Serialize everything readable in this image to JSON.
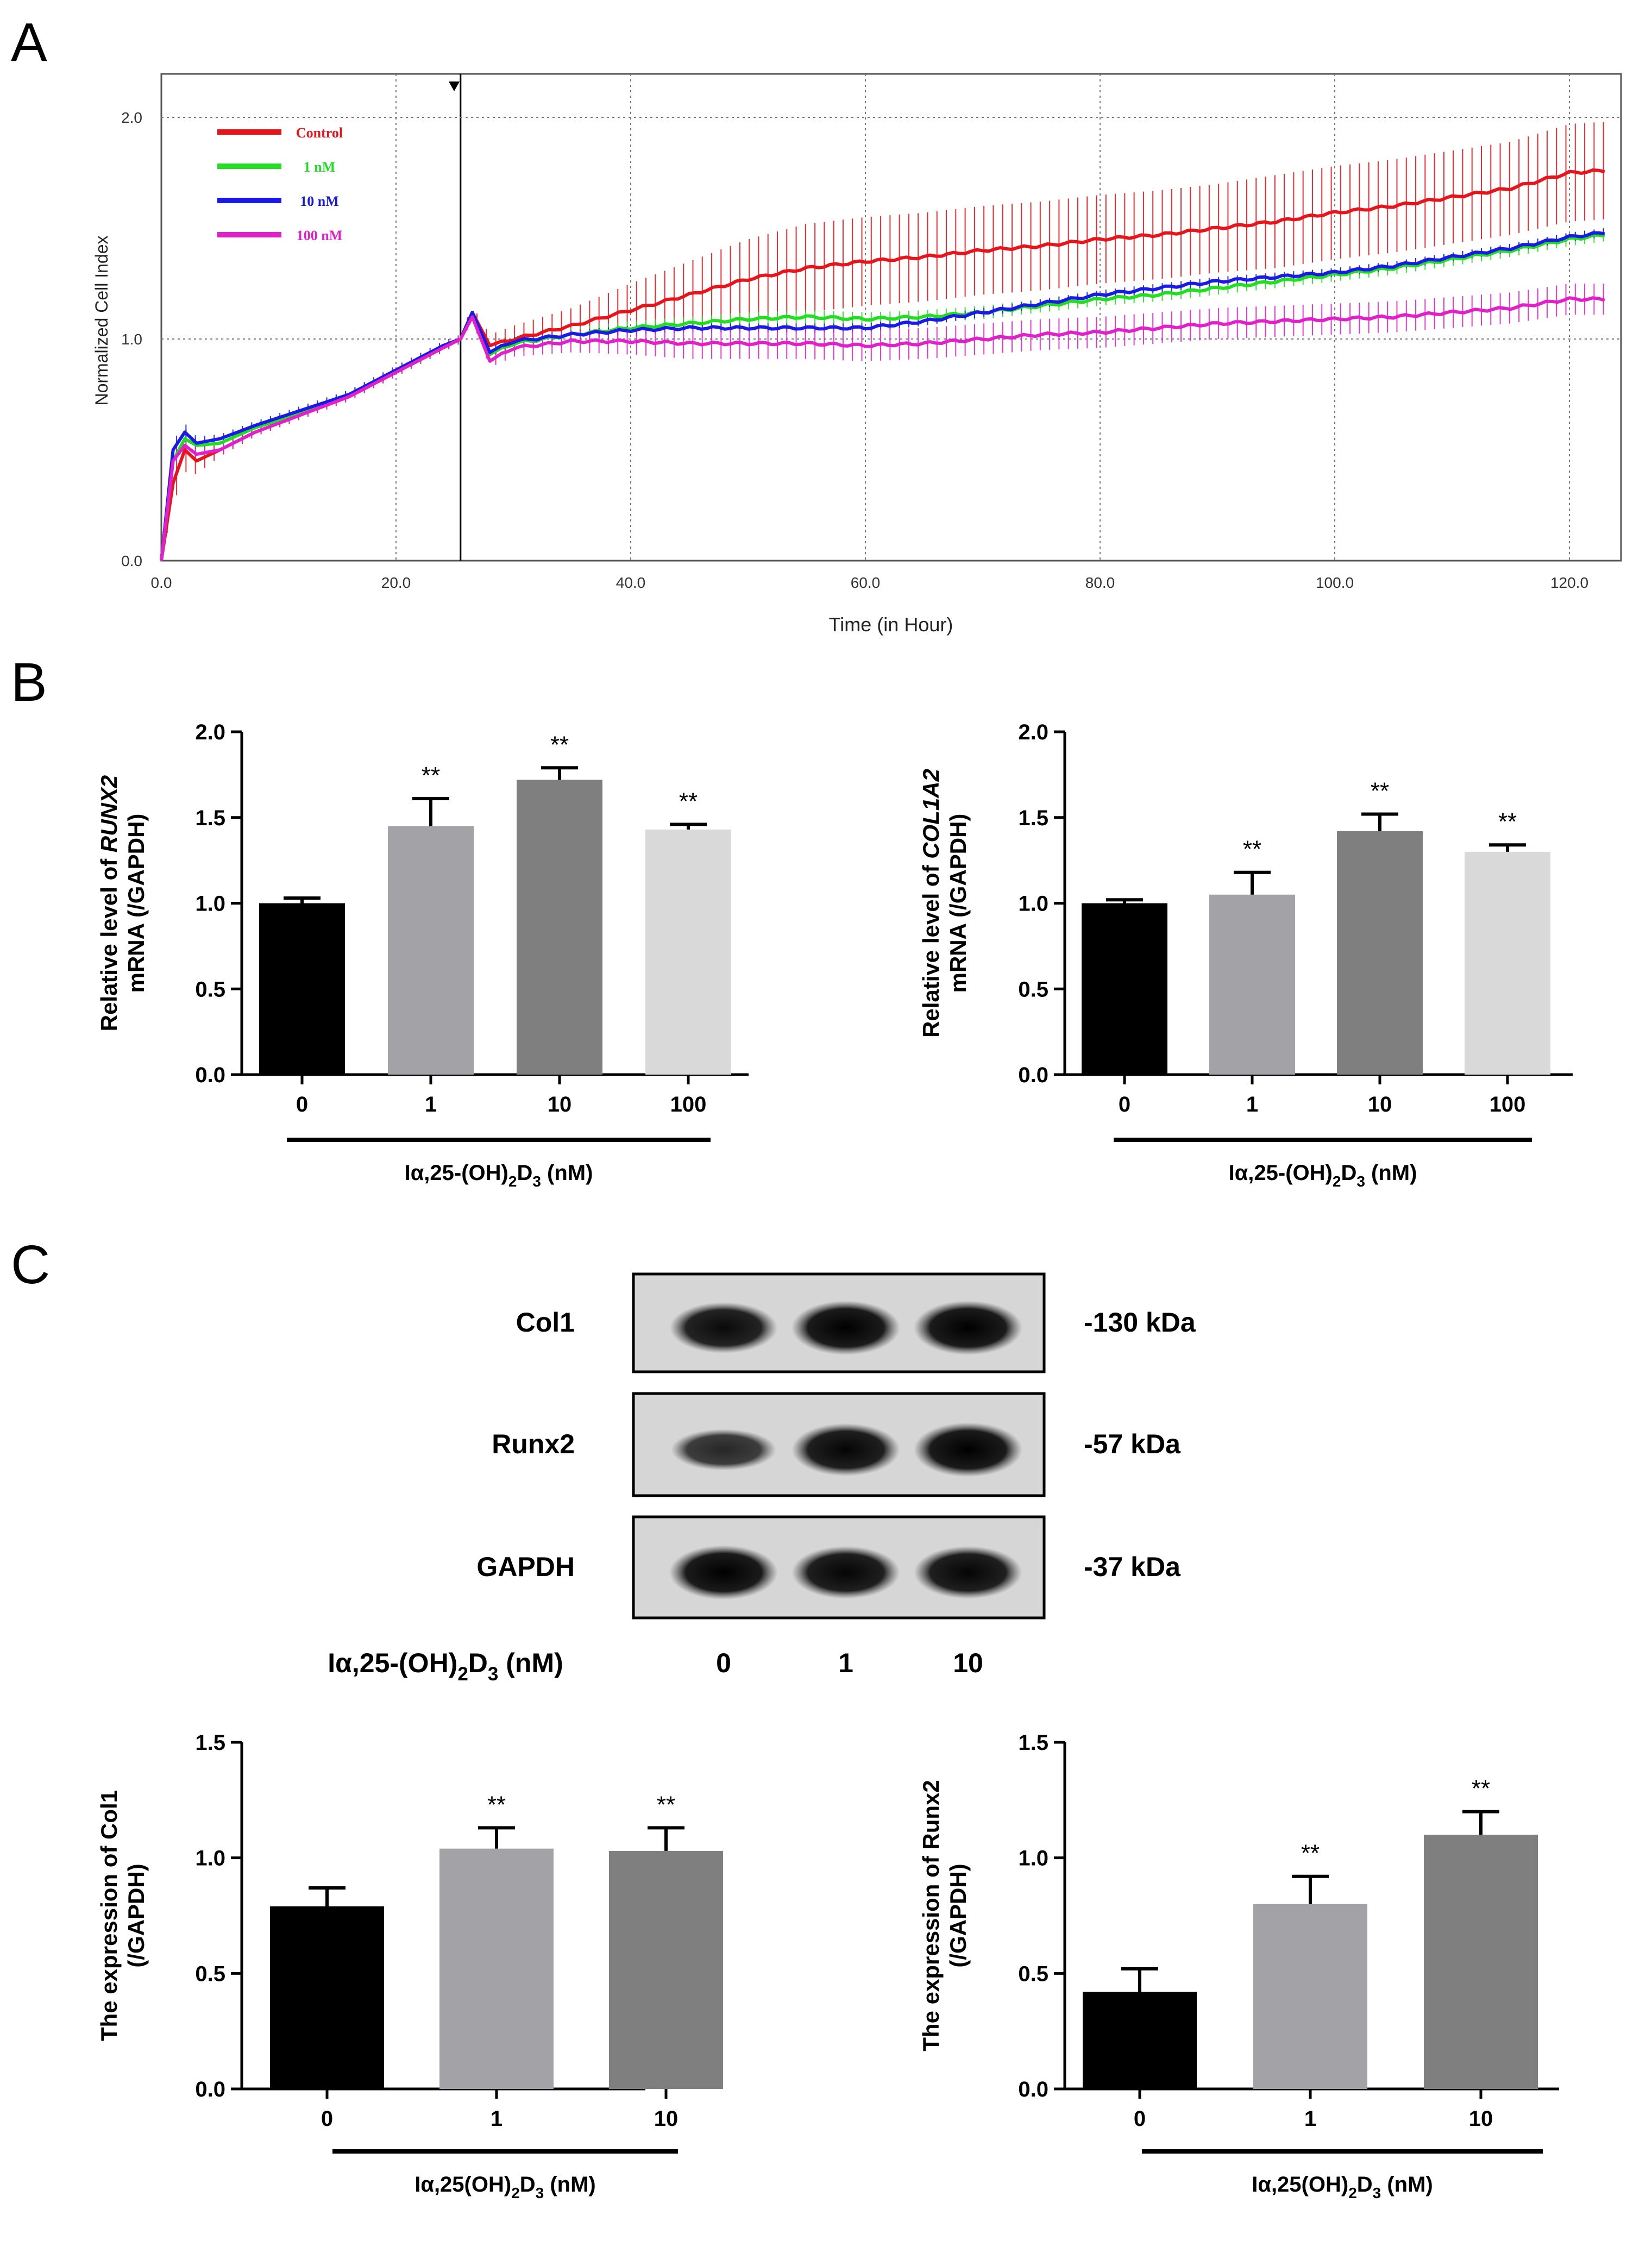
{
  "panels": {
    "a": "A",
    "b": "B",
    "c": "C"
  },
  "chart_data": [
    {
      "id": "panel-a",
      "type": "line",
      "title": "",
      "xlabel": "Time (in Hour)",
      "ylabel": "Normalized Cell Index",
      "xlim": [
        0,
        124
      ],
      "ylim": [
        0,
        2.1
      ],
      "xticks": [
        0,
        20,
        40,
        60,
        80,
        100,
        120
      ],
      "xtick_labels": [
        "0.0",
        "20.0",
        "40.0",
        "60.0",
        "80.0",
        "100.0",
        "120.0"
      ],
      "yticks": [
        0,
        1,
        2
      ],
      "ytick_labels": [
        "0.0",
        "1.0",
        "2.0"
      ],
      "vlines": [
        20,
        25.5,
        40,
        60,
        80,
        100,
        120
      ],
      "treatment_marker_x": 25.5,
      "series": [
        {
          "name": "Control",
          "color": "#e8141c",
          "x": [
            0,
            1,
            2,
            3,
            5,
            8,
            12,
            16,
            20,
            24,
            25.5,
            26.5,
            28,
            30,
            35,
            40,
            45,
            50,
            55,
            60,
            65,
            70,
            75,
            80,
            85,
            90,
            95,
            100,
            105,
            110,
            115,
            120,
            123
          ],
          "values": [
            0,
            0.35,
            0.5,
            0.45,
            0.5,
            0.58,
            0.66,
            0.74,
            0.85,
            0.96,
            1.0,
            1.12,
            0.97,
            1.0,
            1.06,
            1.13,
            1.2,
            1.27,
            1.32,
            1.35,
            1.37,
            1.4,
            1.42,
            1.45,
            1.47,
            1.5,
            1.53,
            1.57,
            1.6,
            1.64,
            1.68,
            1.75,
            1.76
          ],
          "err": [
            0,
            0.1,
            0.1,
            0.06,
            0.03,
            0.02,
            0.02,
            0.02,
            0.02,
            0.02,
            0.02,
            0.03,
            0.05,
            0.06,
            0.08,
            0.12,
            0.15,
            0.18,
            0.2,
            0.2,
            0.2,
            0.2,
            0.2,
            0.2,
            0.2,
            0.2,
            0.21,
            0.21,
            0.21,
            0.21,
            0.21,
            0.22,
            0.22
          ]
        },
        {
          "name": "1 nM",
          "color": "#22dd22",
          "x": [
            0,
            1,
            2,
            3,
            5,
            8,
            12,
            16,
            20,
            24,
            25.5,
            26.5,
            28,
            30,
            35,
            40,
            45,
            50,
            55,
            60,
            65,
            70,
            75,
            80,
            85,
            90,
            95,
            100,
            105,
            110,
            115,
            120,
            123
          ],
          "values": [
            0,
            0.45,
            0.55,
            0.52,
            0.53,
            0.6,
            0.67,
            0.75,
            0.85,
            0.96,
            1.0,
            1.12,
            0.93,
            0.98,
            1.02,
            1.05,
            1.07,
            1.09,
            1.1,
            1.09,
            1.1,
            1.12,
            1.15,
            1.18,
            1.2,
            1.23,
            1.26,
            1.29,
            1.32,
            1.36,
            1.4,
            1.45,
            1.47
          ],
          "err": [
            0,
            0.05,
            0.05,
            0.03,
            0.02,
            0.02,
            0.02,
            0.02,
            0.02,
            0.02,
            0.02,
            0.02,
            0.03,
            0.03,
            0.03,
            0.03,
            0.03,
            0.03,
            0.03,
            0.03,
            0.03,
            0.03,
            0.03,
            0.03,
            0.03,
            0.03,
            0.03,
            0.03,
            0.03,
            0.03,
            0.03,
            0.03,
            0.03
          ]
        },
        {
          "name": "10 nM",
          "color": "#1a1ae6",
          "x": [
            0,
            1,
            2,
            3,
            5,
            8,
            12,
            16,
            20,
            24,
            25.5,
            26.5,
            28,
            30,
            35,
            40,
            45,
            50,
            55,
            60,
            65,
            70,
            75,
            80,
            85,
            90,
            95,
            100,
            105,
            110,
            115,
            120,
            123
          ],
          "values": [
            0,
            0.5,
            0.58,
            0.53,
            0.55,
            0.61,
            0.68,
            0.75,
            0.86,
            0.97,
            1.0,
            1.12,
            0.94,
            0.99,
            1.02,
            1.04,
            1.05,
            1.05,
            1.05,
            1.05,
            1.08,
            1.12,
            1.16,
            1.2,
            1.23,
            1.26,
            1.28,
            1.3,
            1.33,
            1.37,
            1.41,
            1.46,
            1.48
          ],
          "err": [
            0,
            0.04,
            0.04,
            0.03,
            0.02,
            0.02,
            0.02,
            0.02,
            0.02,
            0.02,
            0.02,
            0.02,
            0.02,
            0.02,
            0.02,
            0.02,
            0.02,
            0.02,
            0.02,
            0.02,
            0.02,
            0.02,
            0.02,
            0.02,
            0.02,
            0.02,
            0.02,
            0.02,
            0.02,
            0.02,
            0.02,
            0.02,
            0.02
          ]
        },
        {
          "name": "100 nM",
          "color": "#e020c8",
          "x": [
            0,
            1,
            2,
            3,
            5,
            8,
            12,
            16,
            20,
            24,
            25.5,
            26.5,
            28,
            30,
            35,
            40,
            45,
            50,
            55,
            60,
            65,
            70,
            75,
            80,
            85,
            90,
            95,
            100,
            105,
            110,
            115,
            120,
            123
          ],
          "values": [
            0,
            0.45,
            0.52,
            0.48,
            0.5,
            0.58,
            0.66,
            0.74,
            0.85,
            0.96,
            1.0,
            1.1,
            0.9,
            0.96,
            0.99,
            0.99,
            0.98,
            0.98,
            0.98,
            0.97,
            0.98,
            1.0,
            1.02,
            1.03,
            1.05,
            1.07,
            1.08,
            1.09,
            1.1,
            1.12,
            1.14,
            1.18,
            1.18
          ],
          "err": [
            0,
            0.04,
            0.04,
            0.03,
            0.02,
            0.02,
            0.02,
            0.02,
            0.02,
            0.02,
            0.02,
            0.02,
            0.03,
            0.04,
            0.05,
            0.06,
            0.07,
            0.07,
            0.07,
            0.07,
            0.07,
            0.07,
            0.07,
            0.07,
            0.07,
            0.07,
            0.07,
            0.07,
            0.07,
            0.07,
            0.07,
            0.07,
            0.07
          ]
        }
      ]
    },
    {
      "id": "runx2-mrna",
      "type": "bar",
      "categories": [
        "0",
        "1",
        "10",
        "100"
      ],
      "values": [
        1.0,
        1.45,
        1.72,
        1.43
      ],
      "errors": [
        0.03,
        0.16,
        0.07,
        0.03
      ],
      "significance": [
        "",
        "**",
        "**",
        "**"
      ],
      "colors": [
        "#000000",
        "#a3a3a7",
        "#7f7f7f",
        "#d9d9d9"
      ],
      "ylabel_line1_pre": "Relative level of ",
      "ylabel_line1_gene": "RUNX2",
      "ylabel_line2": "mRNA (/GAPDH)",
      "xlabel": {
        "base": "Iα,25-(OH)",
        "sub1": "2",
        "mid": "D",
        "sub2": "3",
        "unit": " (nM)"
      },
      "ylim": [
        0,
        2.0
      ],
      "yticks": [
        "0.0",
        "0.5",
        "1.0",
        "1.5",
        "2.0"
      ]
    },
    {
      "id": "col1a2-mrna",
      "type": "bar",
      "categories": [
        "0",
        "1",
        "10",
        "100"
      ],
      "values": [
        1.0,
        1.05,
        1.42,
        1.3
      ],
      "errors": [
        0.02,
        0.13,
        0.1,
        0.04
      ],
      "significance": [
        "",
        "**",
        "**",
        "**"
      ],
      "colors": [
        "#000000",
        "#a3a3a7",
        "#7f7f7f",
        "#d9d9d9"
      ],
      "ylabel_line1_pre": "Relative level of ",
      "ylabel_line1_gene": "COL1A2",
      "ylabel_line2": "mRNA (/GAPDH)",
      "xlabel": {
        "base": "Iα,25-(OH)",
        "sub1": "2",
        "mid": "D",
        "sub2": "3",
        "unit": " (nM)"
      },
      "ylim": [
        0,
        2.0
      ],
      "yticks": [
        "0.0",
        "0.5",
        "1.0",
        "1.5",
        "2.0"
      ]
    },
    {
      "id": "col1-protein",
      "type": "bar",
      "categories": [
        "0",
        "1",
        "10"
      ],
      "values": [
        0.79,
        1.04,
        1.03
      ],
      "errors": [
        0.08,
        0.09,
        0.1
      ],
      "significance": [
        "",
        "**",
        "**"
      ],
      "colors": [
        "#000000",
        "#a3a3a7",
        "#7f7f7f"
      ],
      "ylabel_line1": "The expression of Col1",
      "ylabel_line2": "(/GAPDH)",
      "xlabel": {
        "base": "Iα,25(OH)",
        "sub1": "2",
        "mid": "D",
        "sub2": "3",
        "unit": " (nM)"
      },
      "ylim": [
        0,
        1.5
      ],
      "yticks": [
        "0.0",
        "0.5",
        "1.0",
        "1.5"
      ]
    },
    {
      "id": "runx2-protein",
      "type": "bar",
      "categories": [
        "0",
        "1",
        "10"
      ],
      "values": [
        0.42,
        0.8,
        1.1
      ],
      "errors": [
        0.1,
        0.12,
        0.1
      ],
      "significance": [
        "",
        "**",
        "**"
      ],
      "colors": [
        "#000000",
        "#a3a3a7",
        "#7f7f7f"
      ],
      "ylabel_line1": "The expression of Runx2",
      "ylabel_line2": "(/GAPDH)",
      "xlabel": {
        "base": "Iα,25(OH)",
        "sub1": "2",
        "mid": "D",
        "sub2": "3",
        "unit": " (nM)"
      },
      "ylim": [
        0,
        1.5
      ],
      "yticks": [
        "0.0",
        "0.5",
        "1.0",
        "1.5"
      ]
    }
  ],
  "western_blot": {
    "rows": [
      {
        "label": "Col1",
        "size": "-130 kDa",
        "intensity": [
          0.9,
          1.0,
          1.0
        ]
      },
      {
        "label": "Runx2",
        "size": "-57   kDa",
        "intensity": [
          0.6,
          0.95,
          1.0
        ]
      },
      {
        "label": "GAPDH",
        "size": "-37   kDa",
        "intensity": [
          1.0,
          0.95,
          0.95
        ]
      }
    ],
    "lanes": [
      "0",
      "1",
      "10"
    ],
    "treatment_label": {
      "base": "Iα,25-(OH)",
      "sub1": "2",
      "mid": "D",
      "sub2": "3",
      "unit": " (nM)"
    }
  }
}
